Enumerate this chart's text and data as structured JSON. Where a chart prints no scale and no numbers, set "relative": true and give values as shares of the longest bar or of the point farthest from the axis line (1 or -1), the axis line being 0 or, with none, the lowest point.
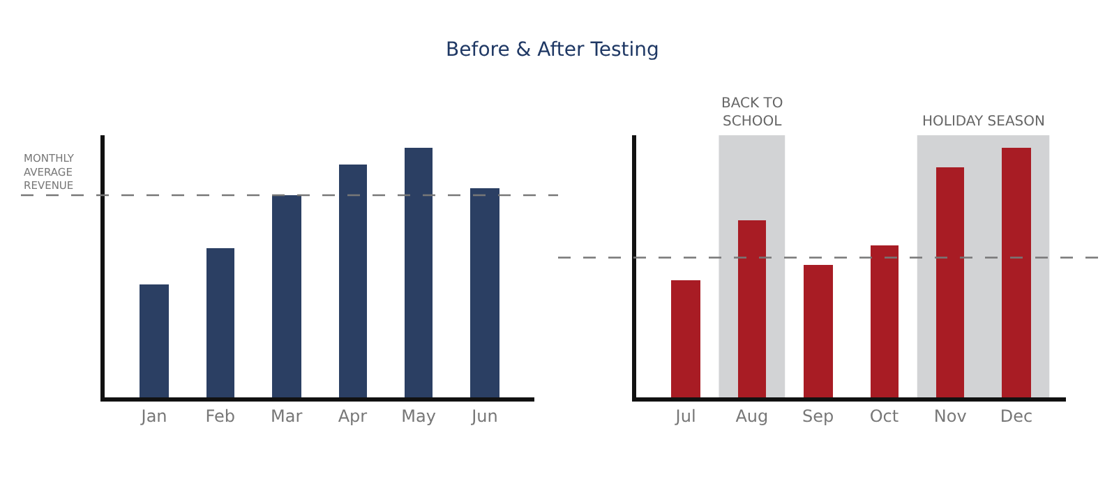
{
  "chart_data": [
    {
      "type": "bar",
      "title": "Before & After Testing",
      "relative": true,
      "categories": [
        "Jan",
        "Feb",
        "Mar",
        "Apr",
        "May",
        "Jun"
      ],
      "values": [
        0.45,
        0.6,
        0.81,
        0.93,
        1,
        0.84
      ],
      "color": "#2b3f63",
      "ref_lines": [
        {
          "axis": "y",
          "value": 0.81,
          "label": "MONTHLY\nAVERAGE\nREVENUE",
          "color": "#777777",
          "line_style": "dashed"
        }
      ],
      "grid": false
    },
    {
      "type": "bar",
      "relative": true,
      "categories": [
        "Jul",
        "Aug",
        "Sep",
        "Oct",
        "Nov",
        "Dec"
      ],
      "values": [
        0.47,
        0.71,
        0.53,
        0.61,
        0.92,
        1
      ],
      "color": "#a81c24",
      "ref_lines": [
        {
          "axis": "y",
          "value": 0.56,
          "color": "#777777",
          "line_style": "dashed"
        }
      ],
      "bands": [
        {
          "axis": "x",
          "from": "Aug",
          "to": "Aug",
          "label": "BACK TO\nSCHOOL",
          "color": "#d2d3d5"
        },
        {
          "axis": "x",
          "from": "Nov",
          "to": "Dec",
          "label": "HOLIDAY SEASON",
          "color": "#d2d3d5"
        }
      ],
      "grid": false
    }
  ]
}
